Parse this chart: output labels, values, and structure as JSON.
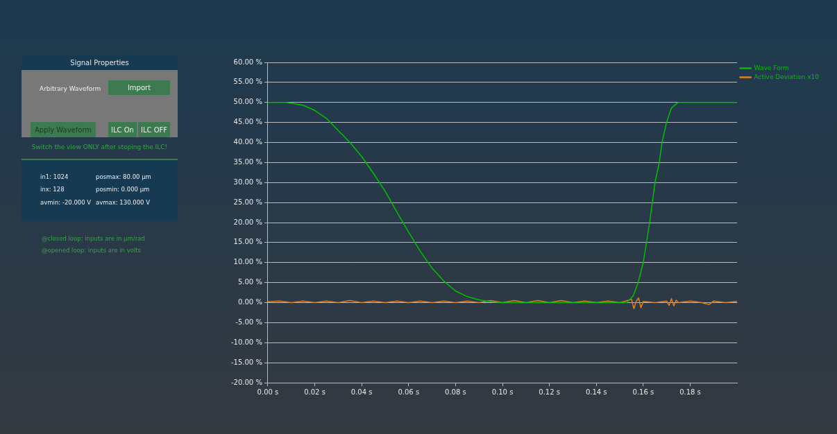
{
  "chart_data": {
    "type": "line",
    "xlim": [
      0,
      0.2
    ],
    "ylim": [
      -20,
      60
    ],
    "xticks": [
      {
        "value": 0,
        "label": "0.00 s"
      },
      {
        "value": 0.02,
        "label": "0.02 s"
      },
      {
        "value": 0.04,
        "label": "0.04 s"
      },
      {
        "value": 0.06,
        "label": "0.06 s"
      },
      {
        "value": 0.08,
        "label": "0.08 s"
      },
      {
        "value": 0.1,
        "label": "0.10 s"
      },
      {
        "value": 0.12,
        "label": "0.12 s"
      },
      {
        "value": 0.14,
        "label": "0.14 s"
      },
      {
        "value": 0.16,
        "label": "0.16 s"
      },
      {
        "value": 0.18,
        "label": "0.18 s"
      }
    ],
    "yticks": [
      {
        "value": -20,
        "label": "-20.00 %"
      },
      {
        "value": -15,
        "label": "-15.00 %"
      },
      {
        "value": -10,
        "label": "-10.00 %"
      },
      {
        "value": -5,
        "label": "-5.00 %"
      },
      {
        "value": 0,
        "label": "0.00 %"
      },
      {
        "value": 5,
        "label": "5.00 %"
      },
      {
        "value": 10,
        "label": "10.00 %"
      },
      {
        "value": 15,
        "label": "15.00 %"
      },
      {
        "value": 20,
        "label": "20.00 %"
      },
      {
        "value": 25,
        "label": "25.00 %"
      },
      {
        "value": 30,
        "label": "30.00 %"
      },
      {
        "value": 35,
        "label": "35.00 %"
      },
      {
        "value": 40,
        "label": "40.00 %"
      },
      {
        "value": 45,
        "label": "45.00 %"
      },
      {
        "value": 50,
        "label": "50.00 %"
      },
      {
        "value": 55,
        "label": "55.00 %"
      },
      {
        "value": 60,
        "label": "60.00 %"
      }
    ],
    "grid": "y",
    "legend": "top right",
    "marker": "none",
    "line_style": "solid",
    "series": [
      {
        "name": "Wave Form",
        "color": "#00c000",
        "x": [
          0,
          0.008,
          0.015,
          0.02,
          0.025,
          0.03,
          0.035,
          0.04,
          0.045,
          0.05,
          0.055,
          0.06,
          0.065,
          0.07,
          0.075,
          0.08,
          0.085,
          0.09,
          0.095,
          0.1,
          0.12,
          0.14,
          0.153,
          0.1557,
          0.1578,
          0.16,
          0.1627,
          0.165,
          0.1668,
          0.168,
          0.1699,
          0.172,
          0.1748,
          0.18,
          0.19,
          0.2
        ],
        "values": [
          50,
          50,
          49.3,
          48,
          46,
          43,
          40,
          36.5,
          32.3,
          27.8,
          22.6,
          17.6,
          12.8,
          8.6,
          5.4,
          2.9,
          1.5,
          0.7,
          0.2,
          0,
          0,
          0,
          0,
          1.7,
          5,
          10,
          20,
          30,
          35,
          40,
          45,
          48.6,
          50,
          50,
          50,
          50
        ]
      },
      {
        "name": "Active Deviation x10",
        "color": "#e08020",
        "x": [
          0,
          0.005,
          0.01,
          0.015,
          0.02,
          0.025,
          0.03,
          0.035,
          0.04,
          0.045,
          0.05,
          0.055,
          0.06,
          0.065,
          0.07,
          0.075,
          0.08,
          0.085,
          0.09,
          0.095,
          0.1,
          0.105,
          0.11,
          0.115,
          0.12,
          0.125,
          0.13,
          0.135,
          0.14,
          0.145,
          0.15,
          0.155,
          0.156,
          0.157,
          0.158,
          0.159,
          0.16,
          0.165,
          0.17,
          0.171,
          0.172,
          0.173,
          0.174,
          0.175,
          0.18,
          0.185,
          0.188,
          0.19,
          0.195,
          0.2
        ],
        "values": [
          0.2,
          0.4,
          0,
          0.4,
          0,
          0.4,
          0,
          0.5,
          0,
          0.4,
          0,
          0.4,
          0,
          0.4,
          0,
          0.4,
          0,
          0.4,
          0,
          0.5,
          0,
          0.5,
          0,
          0.5,
          0,
          0.5,
          0,
          0.4,
          0,
          0.4,
          0,
          0.8,
          -1.5,
          0.3,
          1.2,
          -1.3,
          0.3,
          0,
          0.4,
          -0.7,
          1,
          -0.8,
          0.6,
          0,
          0.4,
          0,
          -0.5,
          0.4,
          0,
          0.3
        ]
      }
    ],
    "annotations": [
      "Signal Properties",
      "Arbitrary Waveform",
      "Import",
      "Apply Waveform",
      "ILC On",
      "ILC OFF",
      "Switch the view ONLY after stoping the ILC!",
      "in1: 1024",
      "posmax: 80.00 µm",
      "inx: 128",
      "posmin: 0.000 µm",
      "avmin: -20.000 V",
      "avmax: 130.000 V",
      "@closed loop:  inputs are in µm/rad",
      "@opened loop:  inputs are in volts"
    ]
  }
}
